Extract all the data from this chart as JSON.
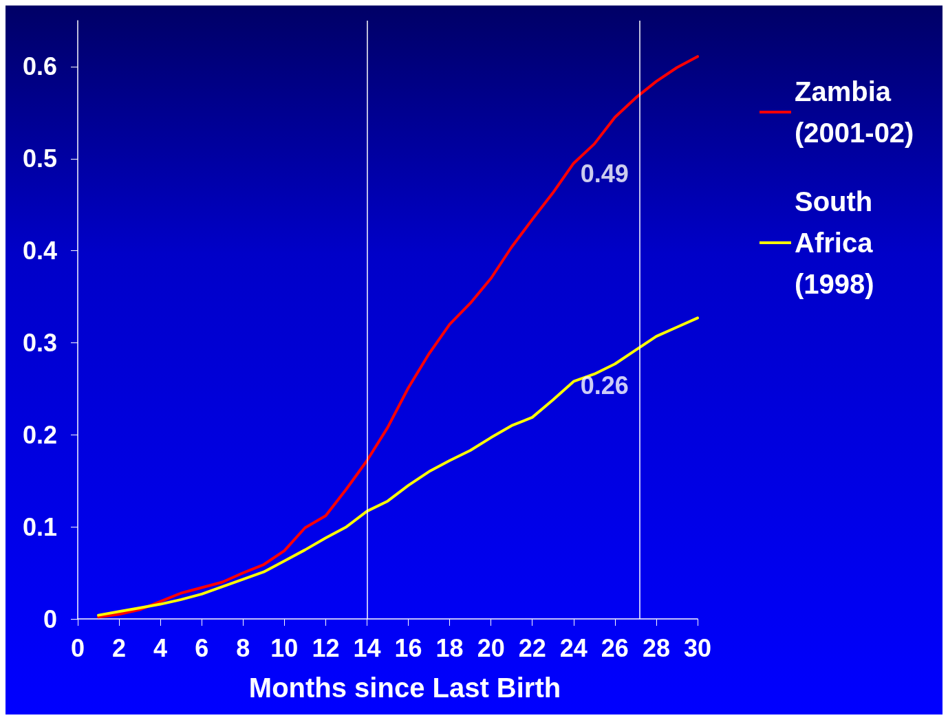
{
  "chart_data": {
    "type": "line",
    "xlabel": "Months since Last Birth",
    "x": [
      1,
      2,
      3,
      4,
      5,
      6,
      7,
      8,
      9,
      10,
      11,
      12,
      13,
      14,
      15,
      16,
      17,
      18,
      19,
      20,
      21,
      22,
      23,
      24,
      25,
      26,
      27,
      28,
      29,
      30
    ],
    "series": [
      {
        "name": "Zambia (2001-02)",
        "color": "#ff0000",
        "values": [
          0.002,
          0.005,
          0.01,
          0.019,
          0.028,
          0.034,
          0.04,
          0.05,
          0.059,
          0.074,
          0.099,
          0.112,
          0.141,
          0.172,
          0.208,
          0.251,
          0.288,
          0.32,
          0.343,
          0.37,
          0.404,
          0.434,
          0.463,
          0.495,
          0.516,
          0.545,
          0.566,
          0.584,
          0.599,
          0.611
        ]
      },
      {
        "name": "South Africa (1998)",
        "color": "#ffff00",
        "values": [
          0.004,
          0.008,
          0.012,
          0.016,
          0.021,
          0.027,
          0.035,
          0.043,
          0.051,
          0.063,
          0.075,
          0.088,
          0.1,
          0.117,
          0.128,
          0.145,
          0.16,
          0.172,
          0.183,
          0.197,
          0.21,
          0.219,
          0.238,
          0.258,
          0.266,
          0.277,
          0.292,
          0.307,
          0.317,
          0.327
        ]
      }
    ],
    "annotations": [
      {
        "text": "0.49",
        "x": 24,
        "y": 0.49
      },
      {
        "text": "0.26",
        "x": 24,
        "y": 0.26
      }
    ],
    "ref_lines": [
      {
        "axis": "x",
        "value": 14,
        "color": "#ffffff"
      },
      {
        "axis": "x",
        "value": 27.2,
        "color": "#ffffff"
      }
    ],
    "xlim": [
      0,
      30
    ],
    "xticks": [
      0,
      2,
      4,
      6,
      8,
      10,
      12,
      14,
      16,
      18,
      20,
      22,
      24,
      26,
      28,
      30
    ],
    "ylim": [
      0,
      0.65
    ],
    "yticks": [
      0,
      0.1,
      0.2,
      0.3,
      0.4,
      0.5,
      0.6
    ],
    "grid": false,
    "legend": "right",
    "marker": "none",
    "line_style": "solid"
  }
}
